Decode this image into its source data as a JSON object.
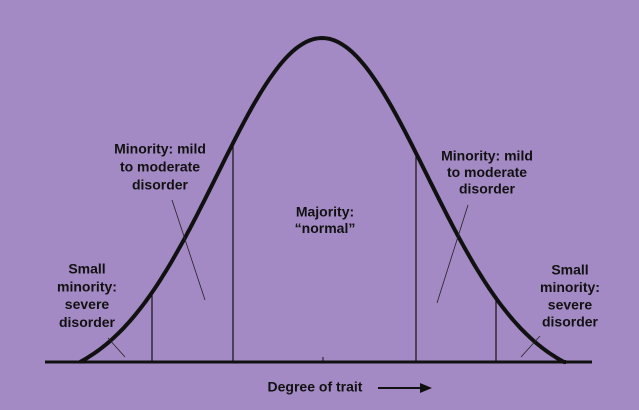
{
  "labels": {
    "left_minority": [
      "Minority: mild",
      "to moderate",
      "disorder"
    ],
    "left_small": [
      "Small",
      "minority:",
      "severe",
      "disorder"
    ],
    "majority": [
      "Majority:",
      "“normal”"
    ],
    "right_minority": [
      "Minority: mild",
      "to moderate",
      "disorder"
    ],
    "right_small": [
      "Small",
      "minority:",
      "severe",
      "disorder"
    ]
  },
  "axis_label": "Degree of trait"
}
